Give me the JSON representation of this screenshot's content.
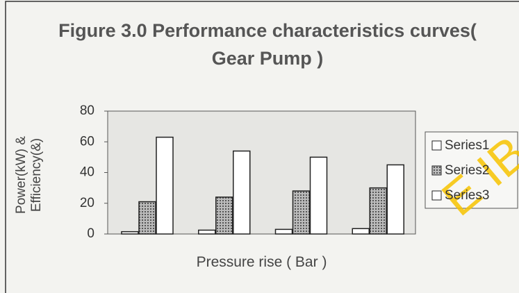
{
  "chart_data": {
    "type": "bar",
    "title": "Figure 3.0 Performance characteristics curves( Gear Pump )",
    "x_label": "Pressure rise ( Bar )",
    "y_label": "Power(kW) & Efficiency(&)",
    "categories": [
      null,
      null,
      null,
      null
    ],
    "series": [
      {
        "name": "Series1",
        "color": "#ffffff",
        "values": [
          1.5,
          2.5,
          3,
          3.5
        ]
      },
      {
        "name": "Series2",
        "color": "#9a9a9a",
        "values": [
          21,
          24,
          28,
          30
        ]
      },
      {
        "name": "Series3",
        "color": "#ffffff",
        "values": [
          63,
          54,
          50,
          45
        ]
      }
    ],
    "ylim": [
      0,
      80
    ],
    "yticks": [
      0,
      20,
      40,
      60,
      80
    ],
    "legend": "right",
    "annotations": [
      "E IBADA"
    ]
  }
}
